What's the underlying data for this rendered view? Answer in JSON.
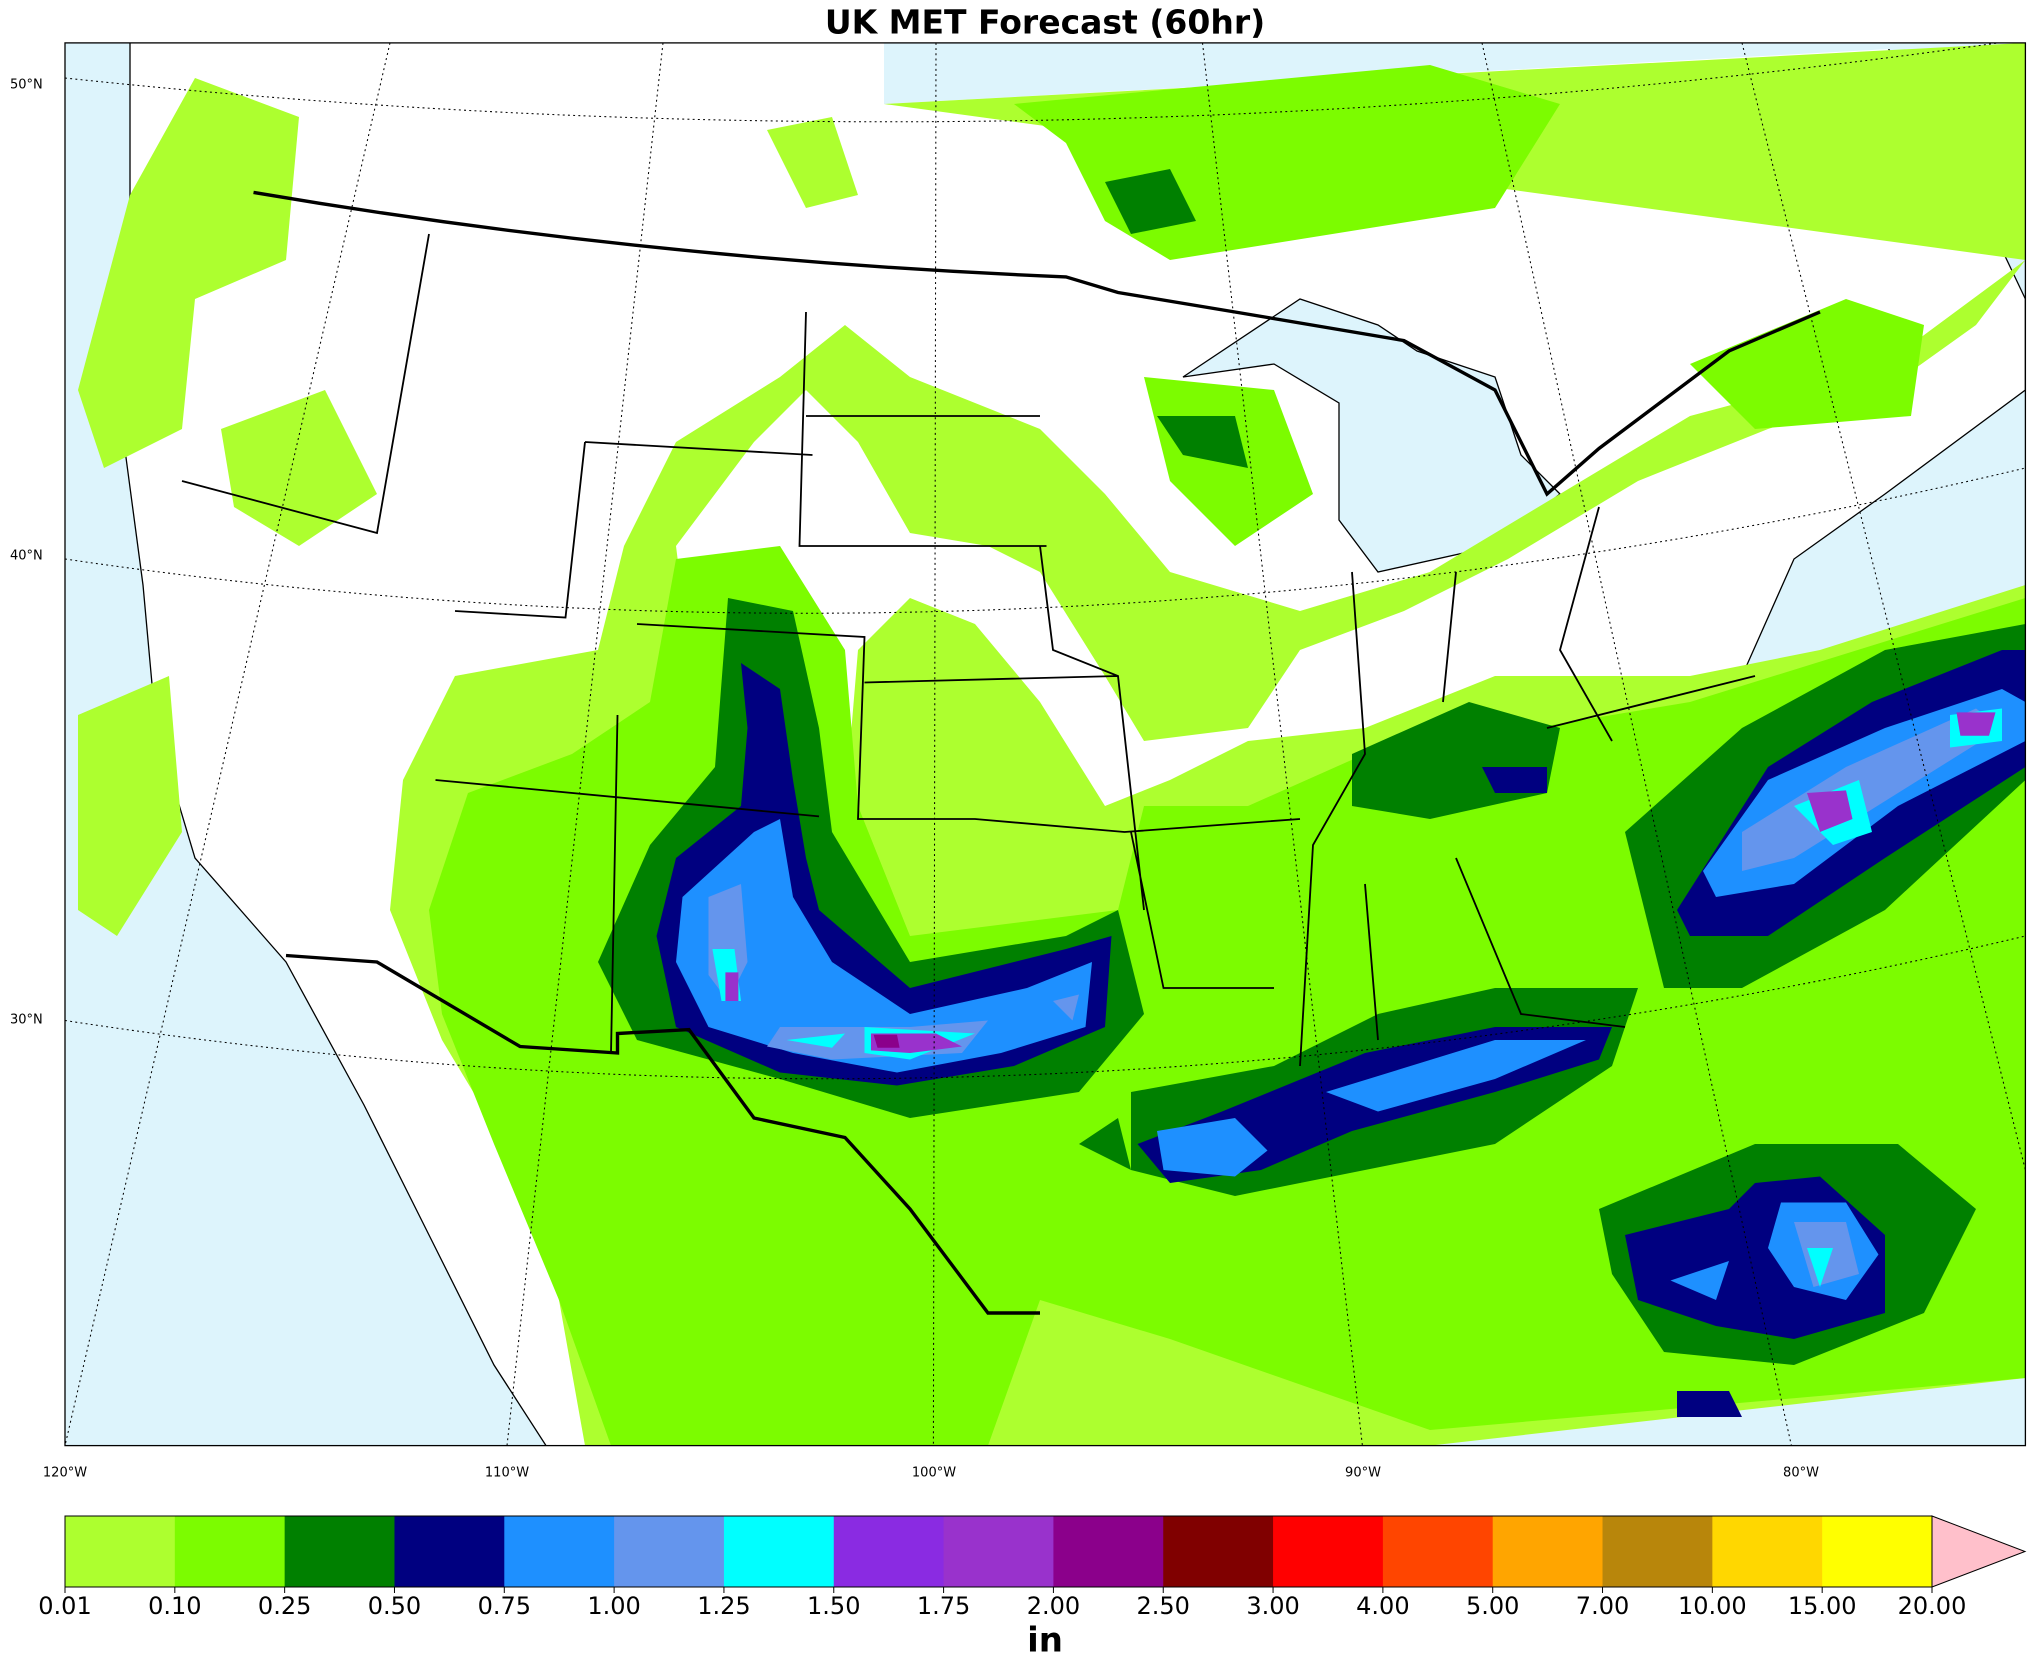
{
  "header": {
    "title": "UK MET Forecast (60hr)"
  },
  "map": {
    "lat_labels": [
      "50°N",
      "40°N",
      "30°N"
    ],
    "lon_labels": [
      "120°W",
      "110°W",
      "100°W",
      "90°W",
      "80°W"
    ]
  },
  "colorbar": {
    "label": "in",
    "levels": [
      0.01,
      {
        "value": 0.1,
        "label": "0.10"
      },
      0.25,
      {
        "value": 0.5,
        "label": "0.50"
      },
      0.75,
      {
        "value": 1,
        "label": "1.00"
      },
      1.25,
      {
        "value": 1.5,
        "label": "1.50"
      },
      1.75,
      {
        "value": 2,
        "label": "2.00"
      },
      {
        "value": 2.5,
        "label": "2.50"
      },
      {
        "value": 3,
        "label": "3.00"
      },
      {
        "value": 4,
        "label": "4.00"
      },
      {
        "value": 5,
        "label": "5.00"
      },
      {
        "value": 7,
        "label": "7.00"
      },
      {
        "value": 10,
        "label": "10.00"
      },
      {
        "value": 15,
        "label": "15.00"
      },
      {
        "value": 20,
        "label": "20.00"
      }
    ],
    "colors": [
      "#adff2f",
      "#7cfc00",
      "#008000",
      "#000080",
      "#1e90ff",
      "#6495ed",
      "#00ffff",
      "#8a2be2",
      "#9932cc",
      "#8b008b",
      "#800000",
      "#ff0000",
      "#ff4500",
      "#ffa500",
      "#b8860b",
      "#ffd700",
      "#ffff00"
    ],
    "extend_color": "#ffc0cb"
  }
}
